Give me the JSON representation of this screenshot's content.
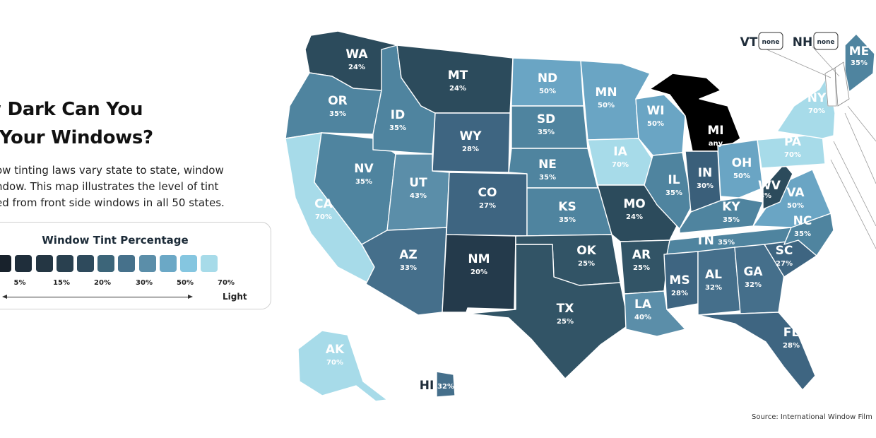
{
  "title_line1": "w Dark Can You",
  "title_line2": "t Your Windows?",
  "description": [
    "ow tinting laws vary state to state, window",
    "ndow. This map illustrates the level of tint",
    "ed from front side windows in all 50 states."
  ],
  "legend": {
    "title": "Window Tint Percentage",
    "colors": [
      "#000000",
      "#18222c",
      "#1f2e3b",
      "#243643",
      "#29404f",
      "#2e4a5c",
      "#3c6579",
      "#46718b",
      "#5b8ea9",
      "#6ba8c6",
      "#85c6e0",
      "#a7dbe9"
    ],
    "labels": [
      "5%",
      "15%",
      "20%",
      "30%",
      "50%",
      "70%"
    ],
    "dark_label": "",
    "light_label": "Light"
  },
  "states": [
    {
      "abbr": "WA",
      "value": "24%",
      "color": "#2c4b5c"
    },
    {
      "abbr": "OR",
      "value": "35%",
      "color": "#4f849f"
    },
    {
      "abbr": "CA",
      "value": "70%",
      "color": "#a7dbe9"
    },
    {
      "abbr": "NV",
      "value": "35%",
      "color": "#4f849f"
    },
    {
      "abbr": "ID",
      "value": "35%",
      "color": "#4f849f"
    },
    {
      "abbr": "MT",
      "value": "24%",
      "color": "#2c4b5c"
    },
    {
      "abbr": "WY",
      "value": "28%",
      "color": "#3e6581"
    },
    {
      "abbr": "UT",
      "value": "43%",
      "color": "#5b8ea9"
    },
    {
      "abbr": "AZ",
      "value": "33%",
      "color": "#456f8b"
    },
    {
      "abbr": "CO",
      "value": "27%",
      "color": "#3e6581"
    },
    {
      "abbr": "NM",
      "value": "20%",
      "color": "#243a4b"
    },
    {
      "abbr": "ND",
      "value": "50%",
      "color": "#6aa5c4"
    },
    {
      "abbr": "SD",
      "value": "35%",
      "color": "#4f849f"
    },
    {
      "abbr": "NE",
      "value": "35%",
      "color": "#4f849f"
    },
    {
      "abbr": "KS",
      "value": "35%",
      "color": "#4f849f"
    },
    {
      "abbr": "OK",
      "value": "25%",
      "color": "#325466"
    },
    {
      "abbr": "TX",
      "value": "25%",
      "color": "#325466"
    },
    {
      "abbr": "MN",
      "value": "50%",
      "color": "#6aa5c4"
    },
    {
      "abbr": "IA",
      "value": "70%",
      "color": "#a7dbe9"
    },
    {
      "abbr": "MO",
      "value": "24%",
      "color": "#2c4b5c"
    },
    {
      "abbr": "AR",
      "value": "25%",
      "color": "#325466"
    },
    {
      "abbr": "LA",
      "value": "40%",
      "color": "#5b8ea9"
    },
    {
      "abbr": "WI",
      "value": "50%",
      "color": "#6aa5c4"
    },
    {
      "abbr": "IL",
      "value": "35%",
      "color": "#4f849f"
    },
    {
      "abbr": "MI",
      "value": "any",
      "color": "#000000"
    },
    {
      "abbr": "IN",
      "value": "30%",
      "color": "#3a5f7a"
    },
    {
      "abbr": "OH",
      "value": "50%",
      "color": "#6aa5c4"
    },
    {
      "abbr": "KY",
      "value": "35%",
      "color": "#4f849f"
    },
    {
      "abbr": "TN",
      "value": "35%",
      "color": "#4f849f"
    },
    {
      "abbr": "MS",
      "value": "28%",
      "color": "#3e6581"
    },
    {
      "abbr": "AL",
      "value": "32%",
      "color": "#456f8b"
    },
    {
      "abbr": "GA",
      "value": "32%",
      "color": "#456f8b"
    },
    {
      "abbr": "FL",
      "value": "28%",
      "color": "#3e6581"
    },
    {
      "abbr": "SC",
      "value": "27%",
      "color": "#3e6581"
    },
    {
      "abbr": "NC",
      "value": "35%",
      "color": "#4f849f"
    },
    {
      "abbr": "VA",
      "value": "50%",
      "color": "#6aa5c4"
    },
    {
      "abbr": "WV",
      "value": "28%",
      "color": "#2c4b5c"
    },
    {
      "abbr": "PA",
      "value": "70%",
      "color": "#a7dbe9"
    },
    {
      "abbr": "NY",
      "value": "70%",
      "color": "#a7dbe9"
    },
    {
      "abbr": "ME",
      "value": "35%",
      "color": "#4f849f"
    },
    {
      "abbr": "VT",
      "value": "none",
      "color": "#ffffff"
    },
    {
      "abbr": "NH",
      "value": "none",
      "color": "#ffffff"
    },
    {
      "abbr": "AK",
      "value": "70%",
      "color": "#a7dbe9"
    },
    {
      "abbr": "HI",
      "value": "32%",
      "color": "#456f8b"
    }
  ],
  "source": "Source: International Window Film"
}
